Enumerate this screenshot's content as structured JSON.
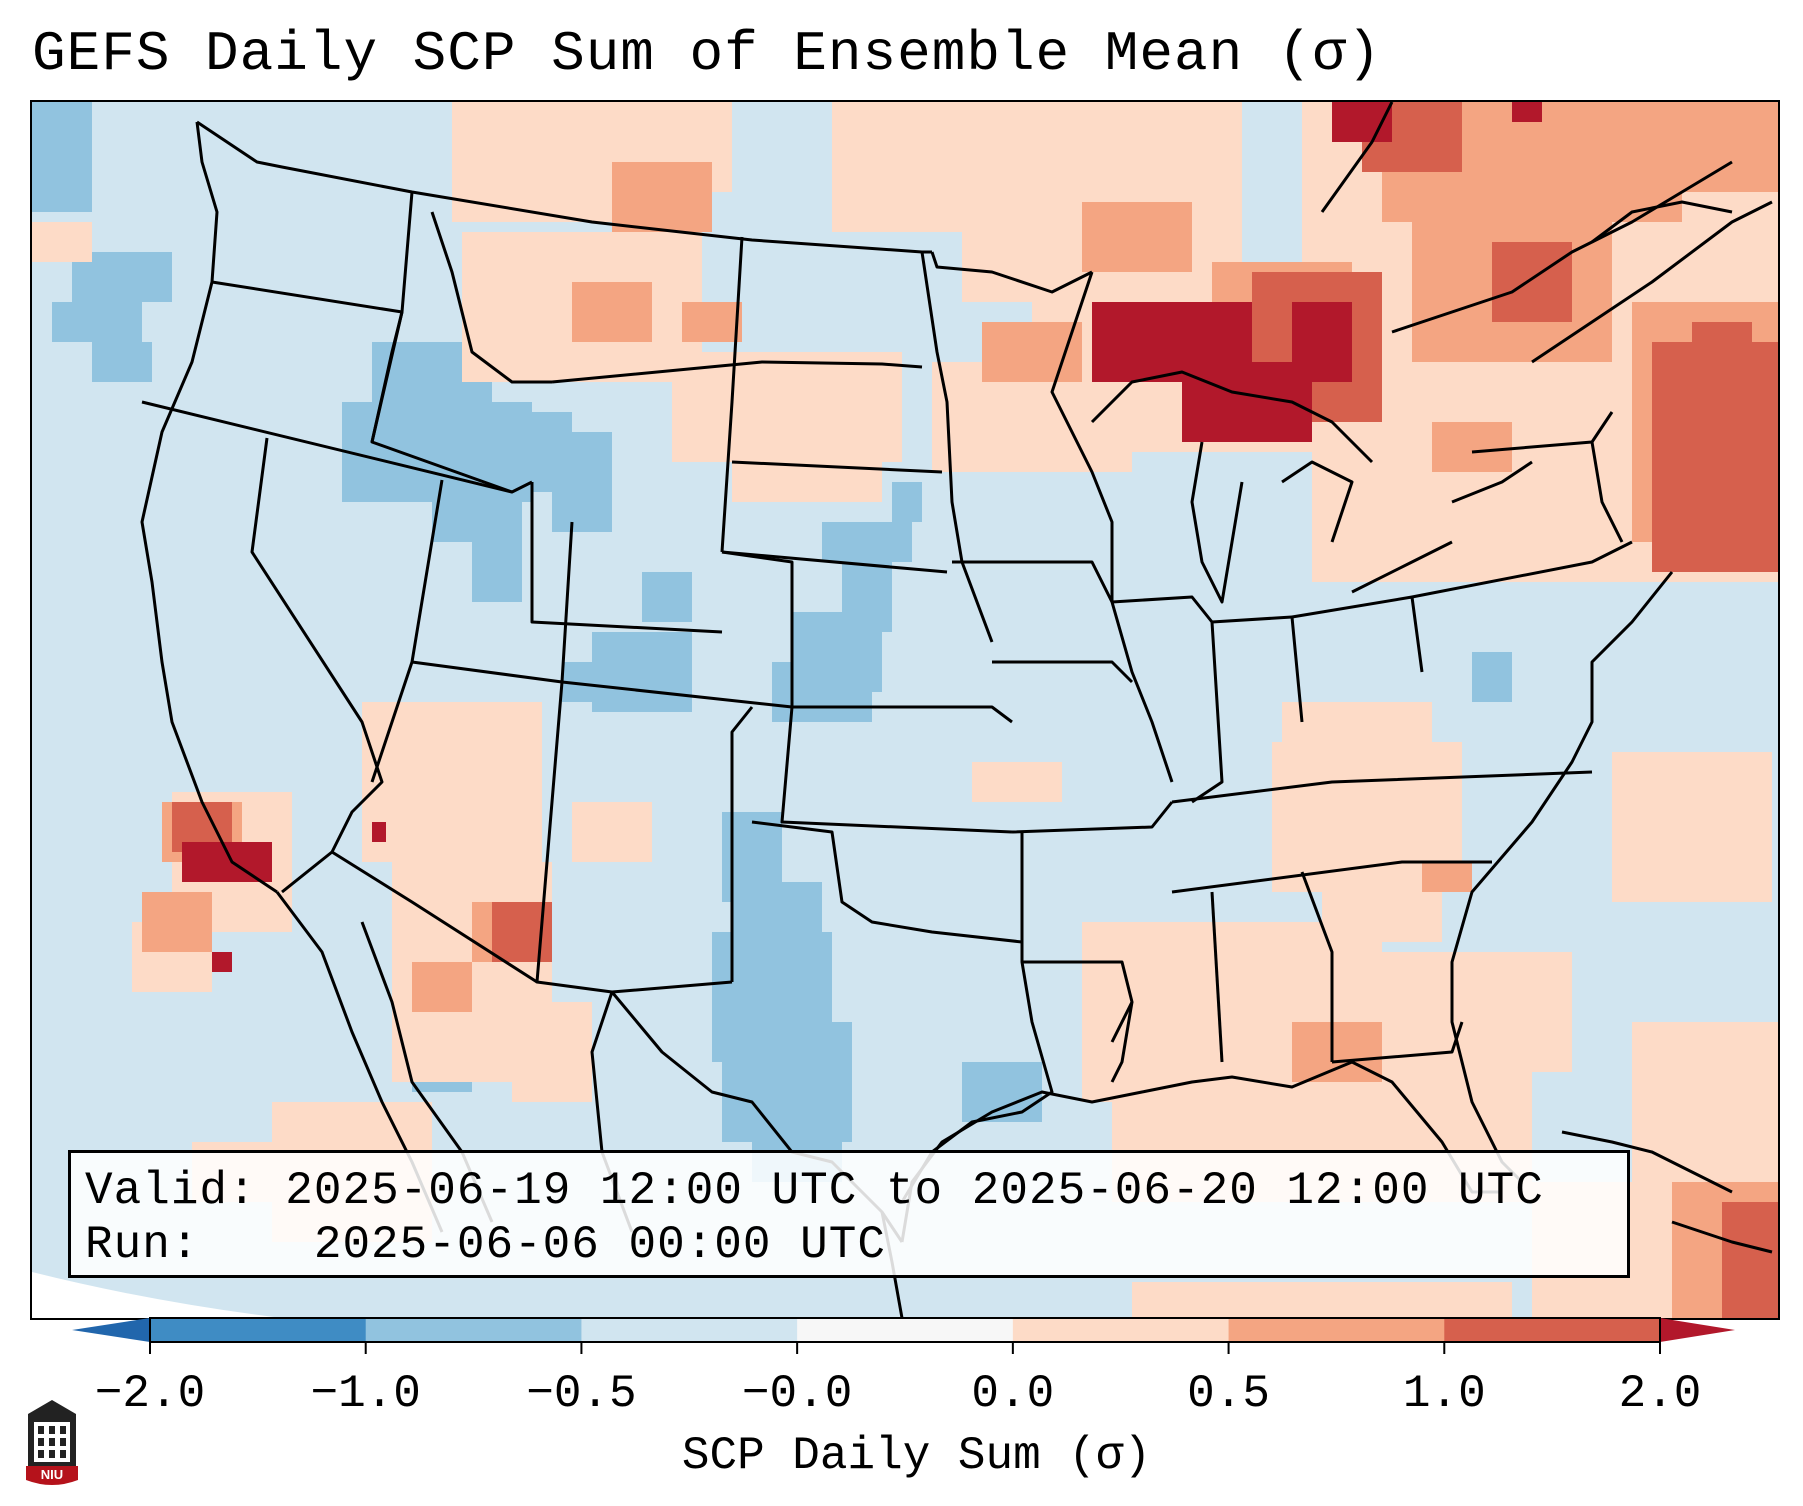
{
  "title": "GEFS Daily SCP Sum of Ensemble Mean (σ)",
  "info": {
    "valid_label": "Valid:",
    "valid_value": "2025-06-19 12:00 UTC to 2025-06-20 12:00 UTC",
    "run_label": "Run:",
    "run_value": "2025-06-06 00:00 UTC"
  },
  "colorbar": {
    "label": "SCP Daily Sum (σ)",
    "ticks": [
      "−2.0",
      "−1.0",
      "−0.5",
      "−0.0",
      "0.0",
      "0.5",
      "1.0",
      "2.0"
    ],
    "bins": [
      {
        "color": "#3f8cc4"
      },
      {
        "color": "#91c3df"
      },
      {
        "color": "#d1e5f0"
      },
      {
        "color": "#f7f7f7"
      },
      {
        "color": "#fddbc7"
      },
      {
        "color": "#f4a582"
      },
      {
        "color": "#d6604d"
      }
    ],
    "under_color": "#2166ac",
    "over_color": "#b2182b"
  },
  "logo": {
    "text": "NIU",
    "color": "#b5121b"
  },
  "colors": {
    "background_field": "#d1e5f0",
    "boundary": "#000000"
  }
}
